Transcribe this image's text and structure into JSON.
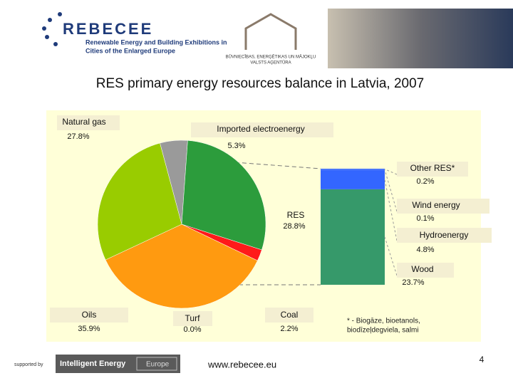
{
  "header": {
    "logo": "REBECEE",
    "logo_line1": "Renewable Energy and Building Exhibitions in",
    "logo_line2": "Cities of the Enlarged Europe",
    "agency_line1": "BŪVNIECĪBAS, ENERĢĒTIKAS UN MĀJOKĻU",
    "agency_line2": "VALSTS AĢENTŪRA"
  },
  "chart_data": {
    "type": "bar-of-pie",
    "title": "RES primary energy resources balance in Latvia, 2007",
    "categories": [
      "Imported electroenergy",
      "RES",
      "Coal",
      "Turf",
      "Oils",
      "Natural gas"
    ],
    "values": [
      5.3,
      28.8,
      2.2,
      0.0,
      35.9,
      27.8
    ],
    "value_labels": [
      "5.3%",
      "28.8%",
      "2.2%",
      "0.0%",
      "35.9%",
      "27.8%"
    ],
    "colors": [
      "#9a9a9a",
      "#2c9c3c",
      "#ff1a1a",
      "#ffcc00",
      "#ff9a10",
      "#99cc00"
    ],
    "bar_categories": [
      "Wood",
      "Hydroenergy",
      "Wind energy",
      "Other RES*"
    ],
    "bar_values": [
      23.7,
      4.8,
      0.1,
      0.2
    ],
    "bar_value_labels": [
      "23.7%",
      "4.8%",
      "0.1%",
      "0.2%"
    ],
    "bar_colors": [
      "#36996a",
      "#3366ff",
      "#3366ff",
      "#3366ff"
    ],
    "footnote_line1": "* - Biogāze, bioetanols,",
    "footnote_line2": "biodīzeļdegviela, salmi"
  },
  "footer": {
    "supported": "supported by",
    "program": "Intelligent Energy",
    "program_region": "Europe",
    "url": "www.rebecee.eu",
    "page": "4"
  }
}
